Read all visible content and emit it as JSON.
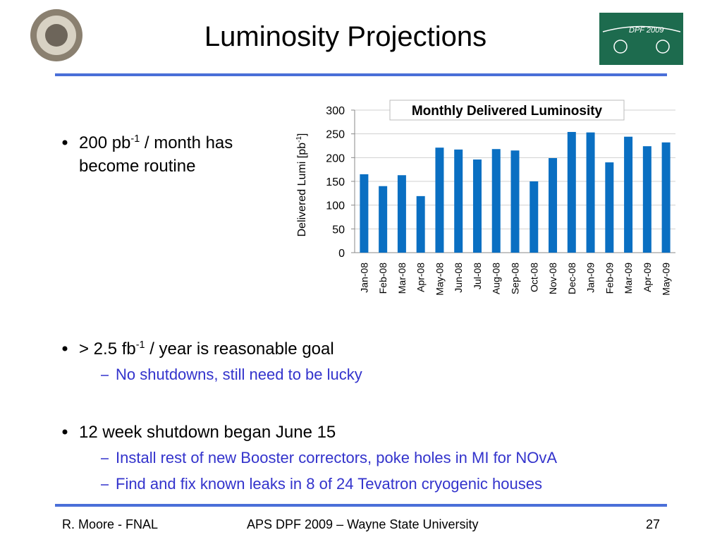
{
  "header": {
    "title": "Luminosity Projections",
    "logo_text": "DPF 2009"
  },
  "bullets": [
    {
      "text": [
        "200 pb",
        "-1",
        " / month has become routine"
      ]
    },
    {
      "text": [
        "> 2.5 fb",
        "-1",
        " / year is reasonable goal"
      ],
      "sub": [
        "No shutdowns, still need to be lucky"
      ]
    },
    {
      "text": [
        "12 week shutdown began June 15"
      ],
      "sub": [
        "Install rest of new Booster correctors, poke holes in MI for NOvA",
        "Find and fix known leaks in 8 of 24 Tevatron cryogenic houses"
      ]
    }
  ],
  "chart_data": {
    "type": "bar",
    "title": "Monthly Delivered Luminosity",
    "ylabel": [
      "Delivered Lumi [pb",
      "-1",
      "]"
    ],
    "categories": [
      "Jan-08",
      "Feb-08",
      "Mar-08",
      "Apr-08",
      "May-08",
      "Jun-08",
      "Jul-08",
      "Aug-08",
      "Sep-08",
      "Oct-08",
      "Nov-08",
      "Dec-08",
      "Jan-09",
      "Feb-09",
      "Mar-09",
      "Apr-09",
      "May-09"
    ],
    "values": [
      165,
      140,
      163,
      119,
      221,
      217,
      196,
      218,
      215,
      150,
      199,
      254,
      253,
      190,
      244,
      224,
      232
    ],
    "color": "#0a6fc2",
    "ylim": [
      0,
      300
    ],
    "yticks": [
      0,
      50,
      100,
      150,
      200,
      250,
      300
    ],
    "grid": true
  },
  "footer": {
    "left": "R. Moore - FNAL",
    "center": "APS DPF 2009 – Wayne State University",
    "page": "27"
  }
}
